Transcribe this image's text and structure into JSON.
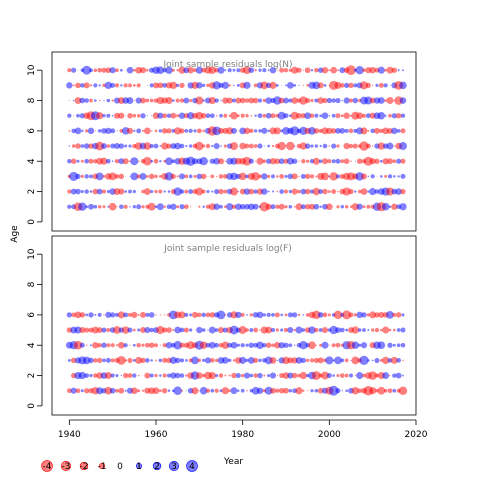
{
  "chart_data": {
    "type": "scatter",
    "ylabel": "Age",
    "xlabel": "Year",
    "x_ticks": [
      1940,
      1960,
      1980,
      2000,
      2020
    ],
    "xlim": [
      1936,
      2020
    ],
    "years": [
      1940,
      2017
    ],
    "panels": [
      {
        "title": "Joint sample residuals log(N)",
        "ages": [
          1,
          2,
          3,
          4,
          5,
          6,
          7,
          8,
          9,
          10
        ],
        "y_ticks": [
          0,
          2,
          4,
          6,
          8,
          10
        ],
        "ylim": [
          -0.6,
          11.2
        ],
        "seed": 7
      },
      {
        "title": "Joint sample residuals log(F)",
        "ages": [
          1,
          2,
          3,
          4,
          5,
          6
        ],
        "y_ticks": [
          0,
          2,
          4,
          6,
          8,
          10
        ],
        "ylim": [
          -0.6,
          11.2
        ],
        "seed": 23
      }
    ],
    "legend": {
      "values": [
        -4,
        -3,
        -2,
        -1,
        0,
        1,
        2,
        3,
        4
      ],
      "labels": [
        "-4",
        "-3",
        "-2",
        "-1",
        "0",
        "1",
        "2",
        "3",
        "4"
      ]
    },
    "colors": {
      "negative": "#ff0000",
      "positive": "#0000ff",
      "frame": "#000000",
      "title": "#808080"
    }
  }
}
